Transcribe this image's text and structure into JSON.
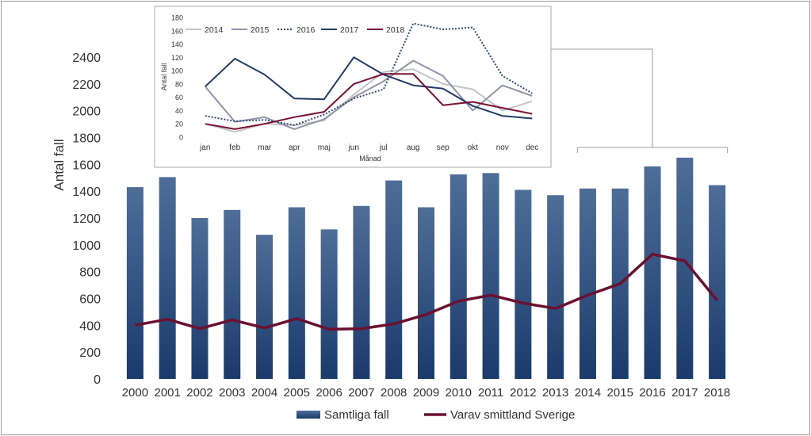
{
  "colors": {
    "bar_top": "#4e6e99",
    "bar_bottom": "#1a3a6b",
    "main_line": "#6b1030",
    "axis_text": "#333333",
    "bracket": "#b0b0b0",
    "inset_border": "#b8b8b8",
    "frame_border": "#9a9a9a"
  },
  "chart_data": [
    {
      "type": "bar",
      "id": "main",
      "ylabel": "Antal fall",
      "xlabel": "",
      "title": "",
      "ylim": [
        0,
        2400
      ],
      "yticks": [
        0,
        200,
        400,
        600,
        800,
        1000,
        1200,
        1400,
        1600,
        1800,
        2000,
        2200,
        2400
      ],
      "categories": [
        "2000",
        "2001",
        "2002",
        "2003",
        "2004",
        "2005",
        "2006",
        "2007",
        "2008",
        "2009",
        "2010",
        "2011",
        "2012",
        "2013",
        "2014",
        "2015",
        "2016",
        "2017",
        "2018"
      ],
      "series": [
        {
          "name": "Samtliga fall",
          "kind": "bar",
          "values": [
            1430,
            1505,
            1200,
            1260,
            1075,
            1280,
            1115,
            1290,
            1480,
            1280,
            1525,
            1535,
            1410,
            1370,
            1420,
            1420,
            1585,
            1650,
            1445
          ]
        },
        {
          "name": "Varav smittland Sverige",
          "kind": "line",
          "values": [
            400,
            445,
            375,
            440,
            380,
            450,
            370,
            375,
            410,
            480,
            580,
            625,
            565,
            525,
            625,
            710,
            930,
            880,
            585
          ]
        }
      ],
      "legend": "bottom"
    },
    {
      "type": "line",
      "id": "inset",
      "ylabel": "Antal fall",
      "xlabel": "Månad",
      "title": "",
      "ylim": [
        0,
        180
      ],
      "yticks": [
        0,
        20,
        40,
        60,
        80,
        100,
        120,
        140,
        160,
        180
      ],
      "categories": [
        "jan",
        "feb",
        "mar",
        "apr",
        "maj",
        "jun",
        "jul",
        "aug",
        "sep",
        "okt",
        "nov",
        "dec"
      ],
      "series": [
        {
          "name": "2014",
          "color": "#c4c4c4",
          "dash": "",
          "values": [
            20,
            8,
            20,
            18,
            25,
            64,
            98,
            102,
            80,
            72,
            40,
            54
          ]
        },
        {
          "name": "2015",
          "color": "#9095a8",
          "dash": "",
          "values": [
            76,
            23,
            30,
            12,
            27,
            60,
            84,
            115,
            92,
            40,
            78,
            62
          ]
        },
        {
          "name": "2016",
          "color": "#2e4a7a",
          "dash": "2 2",
          "values": [
            32,
            24,
            26,
            18,
            34,
            58,
            72,
            171,
            162,
            165,
            92,
            66
          ]
        },
        {
          "name": "2017",
          "color": "#1f3c69",
          "dash": "",
          "values": [
            76,
            118,
            94,
            58,
            57,
            120,
            94,
            78,
            73,
            47,
            32,
            28
          ]
        },
        {
          "name": "2018",
          "color": "#7a1033",
          "dash": "",
          "values": [
            20,
            12,
            20,
            30,
            38,
            80,
            95,
            95,
            48,
            53,
            44,
            35
          ]
        }
      ],
      "legend": "top-left"
    }
  ]
}
